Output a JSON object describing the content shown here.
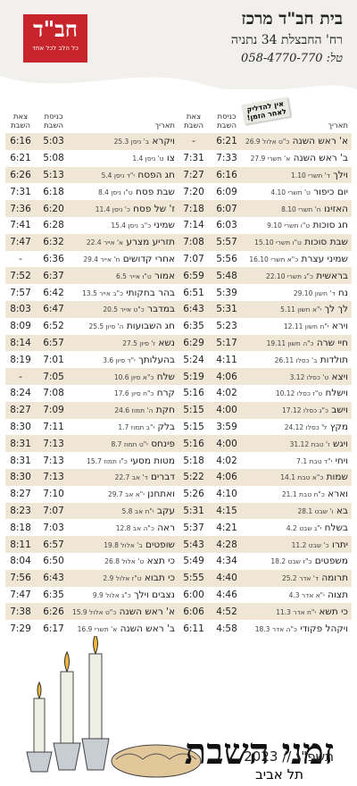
{
  "header": {
    "logo": "חב\"ד",
    "tagline": "כל הלב לכל אחד",
    "org": "בית חב\"ד מרכז",
    "address": "רח' החבצלת 34 נתניה",
    "phone": "טל: 058-4770-770"
  },
  "note": "אין להדליק לאחר הזמן!",
  "columns": [
    "תאריך",
    "כניסת השבת",
    "צאת השבת"
  ],
  "right_table": {
    "rows": [
      [
        "א' ראש השנה",
        "כ\"ט אלול 26.9",
        "6:21",
        "-"
      ],
      [
        "ב' ראש השנה",
        "א' תשרי 27.9",
        "7:33",
        "7:31"
      ],
      [
        "וילך",
        "ד' תשרי 1.10",
        "6:16",
        "7:27"
      ],
      [
        "יום כיפור",
        "ט' תשרי 4.10",
        "6:09",
        "7:20"
      ],
      [
        "האזינו",
        "ח' תשרי 8.10",
        "6:07",
        "7:18"
      ],
      [
        "חג סוכות",
        "ט\"ו תשרי 9.10",
        "6:03",
        "7:14"
      ],
      [
        "שבת סוכות",
        "ט\"ו תשרי 15.10",
        "5:57",
        "7:08"
      ],
      [
        "שמיני עצרת",
        "כ\"א תשרי 16.10",
        "5:56",
        "7:07"
      ],
      [
        "בראשית",
        "כ\"ג תשרי 22.10",
        "5:48",
        "6:59"
      ],
      [
        "נח",
        "ד' חשון 29.10",
        "5:39",
        "6:51"
      ],
      [
        "לך לך",
        "י\"א חשון 5.11",
        "5:31",
        "6:43"
      ],
      [
        "וירא",
        "י\"ח חשון 12.11",
        "5:23",
        "6:35"
      ],
      [
        "חיי שרה",
        "כ\"ה חשון 19.11",
        "5:17",
        "6:29"
      ],
      [
        "תולדות",
        "ב' כסלו 26.11",
        "4:11",
        "5:24"
      ],
      [
        "ויצא",
        "ט' כסלו 3.12",
        "4:06",
        "5:19"
      ],
      [
        "וישלח",
        "ט\"ז כסלו 10.12",
        "4:02",
        "5:16"
      ],
      [
        "וישב",
        "כ\"ג כסלו 17.12",
        "4:00",
        "5:15"
      ],
      [
        "מקץ",
        "ל' כסלו 24.12",
        "3:59",
        "5:15"
      ],
      [
        "ויגש",
        "ז' טבת 31.12",
        "4:00",
        "5:16"
      ],
      [
        "ויחי",
        "י\"ד טבת 7.1",
        "4:02",
        "5:18"
      ],
      [
        "שמות",
        "כ\"א טבת 14.1",
        "4:06",
        "5:22"
      ],
      [
        "וארא",
        "כ\"ח טבת 21.1",
        "4:10",
        "5:26"
      ],
      [
        "בא",
        "ו' שבט 28.1",
        "4:15",
        "5:31"
      ],
      [
        "בשלח",
        "י\"ג שבט 4.2",
        "4:21",
        "5:37"
      ],
      [
        "יתרו",
        "כ' שבט 11.2",
        "4:28",
        "5:43"
      ],
      [
        "משפטים",
        "כ\"ז שבט 18.2",
        "4:34",
        "5:49"
      ],
      [
        "תרומה",
        "ד' אדר 25.2",
        "4:40",
        "5:55"
      ],
      [
        "תצוה",
        "י\"א אדר 4.3",
        "4:46",
        "6:00"
      ],
      [
        "כי תשא",
        "י\"ח אדר 11.3",
        "4:52",
        "6:06"
      ],
      [
        "ויקהל פקודי",
        "כ\"ה אדר 18.3",
        "4:58",
        "6:11"
      ]
    ]
  },
  "left_table": {
    "rows": [
      [
        "ויקרא",
        "ב' ניסן 25.3",
        "5:03",
        "6:16"
      ],
      [
        "צו",
        "ט' ניסן 1.4",
        "5:08",
        "6:21"
      ],
      [
        "חג הפסח",
        "י\"ד ניסן 5.4",
        "5:13",
        "6:26"
      ],
      [
        "שבת פסח",
        "ט\"ו ניסן 8.4",
        "6:18",
        "7:31"
      ],
      [
        "ז' של פסח",
        "כ' ניסן 11.4",
        "6:20",
        "7:36"
      ],
      [
        "שמיני",
        "כ\"ב ניסן 15.4",
        "6:28",
        "7:41"
      ],
      [
        "תזריע מצרע",
        "א' אייר 22.4",
        "6:32",
        "7:47"
      ],
      [
        "אחרי קדושים",
        "ח' אייר 29.4",
        "6:36",
        "-"
      ],
      [
        "אמור",
        "ט\"ו אייר 6.5",
        "6:37",
        "7:52"
      ],
      [
        "בהר בחקותי",
        "כ\"ב אייר 13.5",
        "6:42",
        "7:57"
      ],
      [
        "במדבר",
        "כ\"ט אייר 20.5",
        "6:47",
        "8:03"
      ],
      [
        "חג השבועות",
        "ה' סיון 25.5",
        "6:52",
        "8:09"
      ],
      [
        "נשא",
        "ז' סיון 27.5",
        "6:57",
        "8:14"
      ],
      [
        "בהעלותך",
        "י\"ד סיון 3.6",
        "7:01",
        "8:19"
      ],
      [
        "שלח",
        "כ\"א סיון 10.6",
        "7:05",
        "-"
      ],
      [
        "קרח",
        "כ\"ח סיון 17.6",
        "7:08",
        "8:24"
      ],
      [
        "חקת",
        "ה' תמוז 24.6",
        "7:09",
        "8:27"
      ],
      [
        "בלק",
        "י\"ב תמוז 1.7",
        "7:11",
        "8:30"
      ],
      [
        "פינחס",
        "י\"ט תמוז 8.7",
        "7:13",
        "8:31"
      ],
      [
        "מטות מסעי",
        "כ\"ו תמוז 15.7",
        "7:13",
        "8:31"
      ],
      [
        "דברים",
        "ד' אב 22.7",
        "7:13",
        "8:30"
      ],
      [
        "ואתחנן",
        "י\"א אב 29.7",
        "7:10",
        "8:27"
      ],
      [
        "עקב",
        "י\"ח אב 5.8",
        "7:07",
        "8:23"
      ],
      [
        "ראה",
        "כ\"ה אב 12.8",
        "7:03",
        "8:18"
      ],
      [
        "שופטים",
        "ב' אלול 19.8",
        "6:57",
        "8:11"
      ],
      [
        "כי תצא",
        "ט' אלול 26.8",
        "6:50",
        "8:04"
      ],
      [
        "כי תבוא",
        "ט\"ז אלול 2.9",
        "6:43",
        "7:56"
      ],
      [
        "נצבים וילך",
        "כ\"ג אלול 9.9",
        "6:35",
        "7:47"
      ],
      [
        "א' ראש השנה",
        "כ\"ט אלול 15.9",
        "6:26",
        "7:38"
      ],
      [
        "ב' ראש השנה",
        "א' תשרי 16.9",
        "6:17",
        "7:29"
      ]
    ]
  },
  "footer": {
    "title": "זמני השבת",
    "year": "תשפ\"ג // 2023",
    "city": "תל אביב"
  }
}
